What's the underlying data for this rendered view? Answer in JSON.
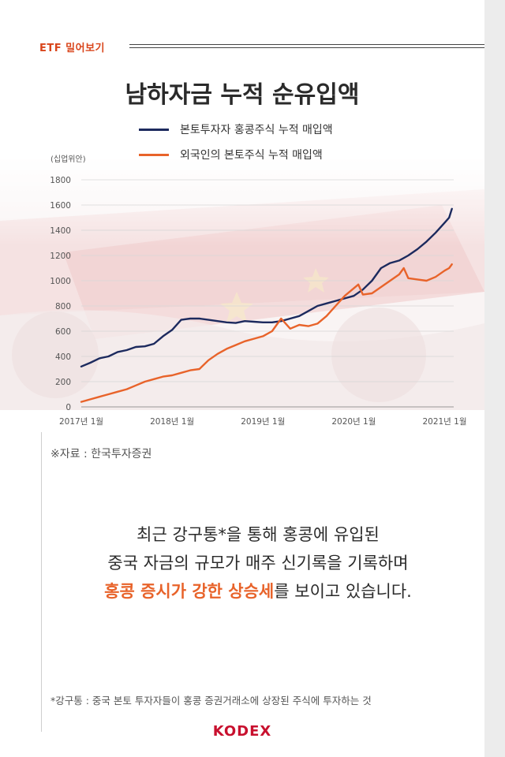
{
  "header": {
    "tag": "ETF 밀어보기"
  },
  "title": "남하자금 누적 순유입액",
  "body": {
    "line1": "최근 강구통*을 통해 홍콩에 유입된",
    "line2": "중국 자금의 규모가 매주 신기록을 기록하며",
    "line3_highlight": "홍콩 증시가 강한 상승세",
    "line3_rest": "를 보이고 있습니다."
  },
  "source": "※자료 : 한국투자증권",
  "footnote": "*강구통 : 중국 본토 투자자들이 홍콩 증권거래소에 상장된 주식에 투자하는 것",
  "brand": "KODEX",
  "colors": {
    "accent": "#e8632a",
    "navy": "#1c2a5e",
    "brand_red": "#c8102e"
  },
  "chart_data": {
    "type": "line",
    "title": "남하자금 누적 순유입액",
    "unit_label": "(십업위안)",
    "ylim": [
      0,
      1800
    ],
    "yticks": [
      0,
      200,
      400,
      600,
      800,
      1000,
      1200,
      1400,
      1600,
      1800
    ],
    "xlim": [
      0,
      4.1
    ],
    "xticks": [
      {
        "x": 0,
        "label": "2017년 1월"
      },
      {
        "x": 1,
        "label": "2018년 1월"
      },
      {
        "x": 2,
        "label": "2019년 1월"
      },
      {
        "x": 3,
        "label": "2020년 1월"
      },
      {
        "x": 4,
        "label": "2021년 1월"
      }
    ],
    "grid": true,
    "legend_position": "top-center",
    "series": [
      {
        "name": "본토투자자 홍콩주식 누적 매입액",
        "color": "#1c2a5e",
        "x": [
          0,
          0.1,
          0.2,
          0.3,
          0.4,
          0.5,
          0.6,
          0.7,
          0.8,
          0.9,
          1.0,
          1.1,
          1.2,
          1.3,
          1.4,
          1.5,
          1.6,
          1.7,
          1.8,
          1.9,
          2.0,
          2.1,
          2.2,
          2.3,
          2.4,
          2.5,
          2.6,
          2.7,
          2.8,
          2.9,
          3.0,
          3.1,
          3.2,
          3.3,
          3.4,
          3.5,
          3.6,
          3.7,
          3.8,
          3.9,
          4.0,
          4.05,
          4.08
        ],
        "y": [
          320,
          350,
          385,
          400,
          435,
          450,
          475,
          480,
          500,
          560,
          610,
          690,
          700,
          700,
          690,
          680,
          670,
          665,
          680,
          675,
          670,
          670,
          680,
          700,
          720,
          760,
          800,
          820,
          840,
          860,
          880,
          930,
          1000,
          1100,
          1140,
          1160,
          1200,
          1250,
          1310,
          1380,
          1460,
          1500,
          1570
        ]
      },
      {
        "name": "외국인의 본토주식 누적 매입액",
        "color": "#e8632a",
        "x": [
          0,
          0.1,
          0.2,
          0.3,
          0.4,
          0.5,
          0.6,
          0.7,
          0.8,
          0.9,
          1.0,
          1.1,
          1.2,
          1.3,
          1.4,
          1.5,
          1.6,
          1.7,
          1.8,
          1.9,
          2.0,
          2.1,
          2.2,
          2.3,
          2.4,
          2.5,
          2.6,
          2.7,
          2.8,
          2.9,
          3.0,
          3.05,
          3.1,
          3.2,
          3.3,
          3.4,
          3.5,
          3.55,
          3.6,
          3.7,
          3.8,
          3.9,
          4.0,
          4.05,
          4.08
        ],
        "y": [
          40,
          60,
          80,
          100,
          120,
          140,
          170,
          200,
          220,
          240,
          250,
          270,
          290,
          300,
          370,
          420,
          460,
          490,
          520,
          540,
          560,
          600,
          700,
          620,
          650,
          640,
          660,
          720,
          800,
          880,
          940,
          970,
          890,
          900,
          950,
          1000,
          1050,
          1100,
          1020,
          1010,
          1000,
          1030,
          1080,
          1100,
          1130
        ]
      }
    ]
  }
}
